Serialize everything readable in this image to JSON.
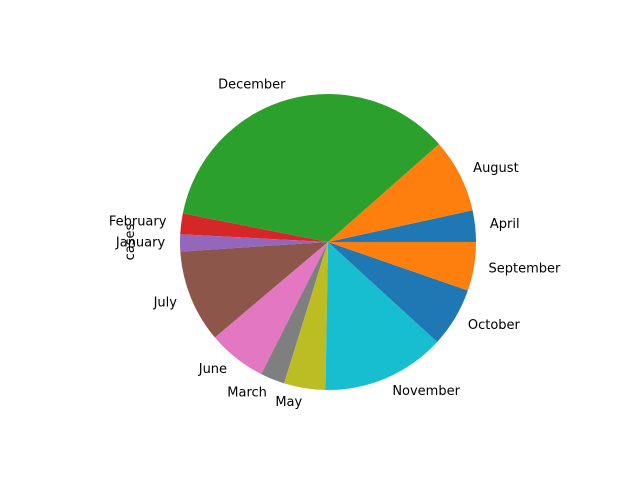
{
  "chart_data": {
    "type": "pie",
    "ylabel": "cases",
    "labels": [
      "April",
      "August",
      "December",
      "February",
      "January",
      "July",
      "June",
      "March",
      "May",
      "November",
      "October",
      "September"
    ],
    "values": [
      3.5,
      8.2,
      36.0,
      2.3,
      1.9,
      10.3,
      6.5,
      2.7,
      4.6,
      13.7,
      6.6,
      5.4
    ],
    "colors": [
      "#1f77b4",
      "#ff7f0e",
      "#2ca02c",
      "#d62728",
      "#9467bd",
      "#8c564b",
      "#e377c2",
      "#7f7f7f",
      "#bcbd22",
      "#17becf",
      "#1f77b4",
      "#ff7f0e"
    ],
    "start_angle": 0,
    "direction": "counterclockwise"
  }
}
